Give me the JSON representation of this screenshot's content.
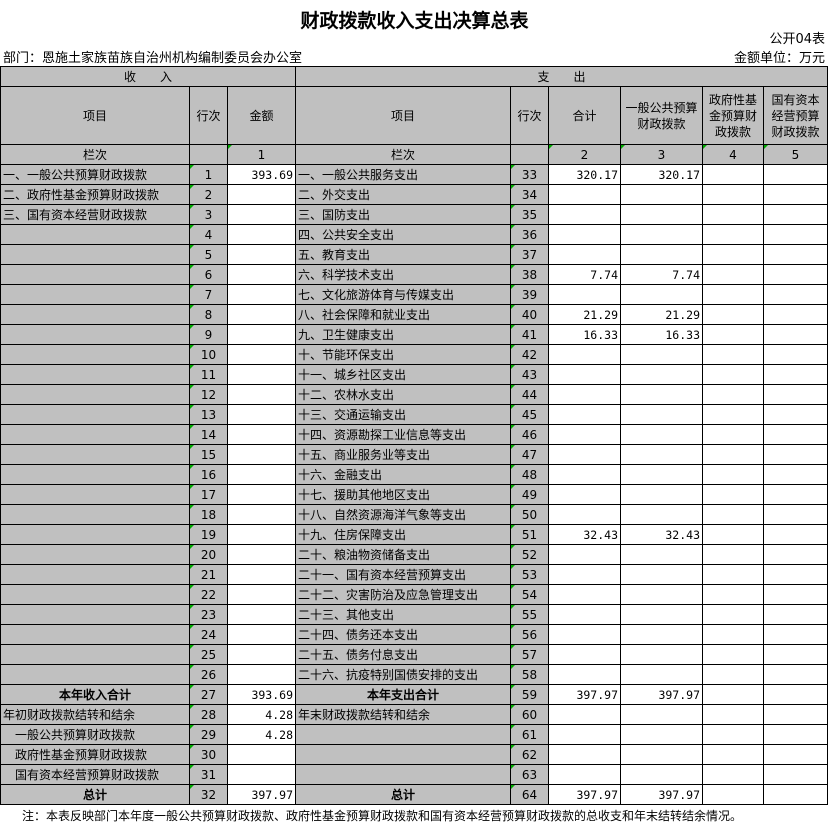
{
  "title": "财政拨款收入支出决算总表",
  "code": "公开04表",
  "dept": "部门：恩施土家族苗族自治州机构编制委员会办公室",
  "unit": "金额单位：万元",
  "headers": {
    "income": "收　　入",
    "expense": "支　　出",
    "item": "项目",
    "line": "行次",
    "amount": "金额",
    "total": "合计",
    "general": "一般公共预算财政拨款",
    "gov_fund": "政府性基金预算财政拨款",
    "state_capital": "国有资本经营预算财政拨款",
    "col_label": "栏次",
    "col1": "1",
    "col2": "2",
    "col3": "3",
    "col4": "4",
    "col5": "5"
  },
  "rows": [
    [
      "一、一般公共预算财政拨款",
      "1",
      "393.69",
      "一、一般公共服务支出",
      "33",
      "320.17",
      "320.17",
      "",
      ""
    ],
    [
      "二、政府性基金预算财政拨款",
      "2",
      "",
      "二、外交支出",
      "34",
      "",
      "",
      "",
      ""
    ],
    [
      "三、国有资本经营财政拨款",
      "3",
      "",
      "三、国防支出",
      "35",
      "",
      "",
      "",
      ""
    ],
    [
      "",
      "4",
      "",
      "四、公共安全支出",
      "36",
      "",
      "",
      "",
      ""
    ],
    [
      "",
      "5",
      "",
      "五、教育支出",
      "37",
      "",
      "",
      "",
      ""
    ],
    [
      "",
      "6",
      "",
      "六、科学技术支出",
      "38",
      "7.74",
      "7.74",
      "",
      ""
    ],
    [
      "",
      "7",
      "",
      "七、文化旅游体育与传媒支出",
      "39",
      "",
      "",
      "",
      ""
    ],
    [
      "",
      "8",
      "",
      "八、社会保障和就业支出",
      "40",
      "21.29",
      "21.29",
      "",
      ""
    ],
    [
      "",
      "9",
      "",
      "九、卫生健康支出",
      "41",
      "16.33",
      "16.33",
      "",
      ""
    ],
    [
      "",
      "10",
      "",
      "十、节能环保支出",
      "42",
      "",
      "",
      "",
      ""
    ],
    [
      "",
      "11",
      "",
      "十一、城乡社区支出",
      "43",
      "",
      "",
      "",
      ""
    ],
    [
      "",
      "12",
      "",
      "十二、农林水支出",
      "44",
      "",
      "",
      "",
      ""
    ],
    [
      "",
      "13",
      "",
      "十三、交通运输支出",
      "45",
      "",
      "",
      "",
      ""
    ],
    [
      "",
      "14",
      "",
      "十四、资源勘探工业信息等支出",
      "46",
      "",
      "",
      "",
      ""
    ],
    [
      "",
      "15",
      "",
      "十五、商业服务业等支出",
      "47",
      "",
      "",
      "",
      ""
    ],
    [
      "",
      "16",
      "",
      "十六、金融支出",
      "48",
      "",
      "",
      "",
      ""
    ],
    [
      "",
      "17",
      "",
      "十七、援助其他地区支出",
      "49",
      "",
      "",
      "",
      ""
    ],
    [
      "",
      "18",
      "",
      "十八、自然资源海洋气象等支出",
      "50",
      "",
      "",
      "",
      ""
    ],
    [
      "",
      "19",
      "",
      "十九、住房保障支出",
      "51",
      "32.43",
      "32.43",
      "",
      ""
    ],
    [
      "",
      "20",
      "",
      "二十、粮油物资储备支出",
      "52",
      "",
      "",
      "",
      ""
    ],
    [
      "",
      "21",
      "",
      "二十一、国有资本经营预算支出",
      "53",
      "",
      "",
      "",
      ""
    ],
    [
      "",
      "22",
      "",
      "二十二、灾害防治及应急管理支出",
      "54",
      "",
      "",
      "",
      ""
    ],
    [
      "",
      "23",
      "",
      "二十三、其他支出",
      "55",
      "",
      "",
      "",
      ""
    ],
    [
      "",
      "24",
      "",
      "二十四、债务还本支出",
      "56",
      "",
      "",
      "",
      ""
    ],
    [
      "",
      "25",
      "",
      "二十五、债务付息支出",
      "57",
      "",
      "",
      "",
      ""
    ],
    [
      "",
      "26",
      "",
      "二十六、抗疫特别国债安排的支出",
      "58",
      "",
      "",
      "",
      ""
    ],
    [
      "本年收入合计",
      "27",
      "393.69",
      "本年支出合计",
      "59",
      "397.97",
      "397.97",
      "",
      ""
    ],
    [
      "年初财政拨款结转和结余",
      "28",
      "4.28",
      "年末财政拨款结转和结余",
      "60",
      "",
      "",
      "",
      ""
    ],
    [
      "　一般公共预算财政拨款",
      "29",
      "4.28",
      "",
      "61",
      "",
      "",
      "",
      ""
    ],
    [
      "　政府性基金预算财政拨款",
      "30",
      "",
      "",
      "62",
      "",
      "",
      "",
      ""
    ],
    [
      "　国有资本经营预算财政拨款",
      "31",
      "",
      "",
      "63",
      "",
      "",
      "",
      ""
    ],
    [
      "总计",
      "32",
      "397.97",
      "总计",
      "64",
      "397.97",
      "397.97",
      "",
      ""
    ]
  ],
  "note": "注：本表反映部门本年度一般公共预算财政拨款、政府性基金预算财政拨款和国有资本经营预算财政拨款的总收支和年末结转结余情况。"
}
